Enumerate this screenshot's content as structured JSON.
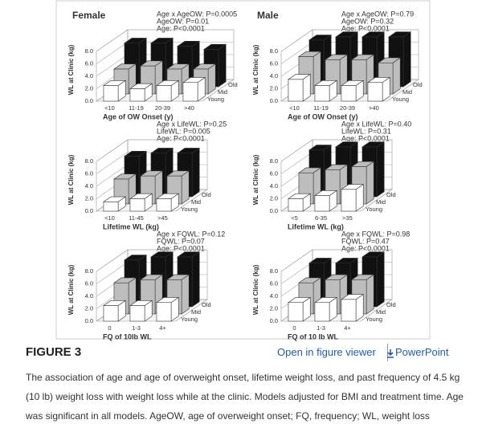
{
  "chart_data": [
    {
      "type": "bar",
      "title": "Female",
      "annotations": [
        "Age x AgeOW: P=0.0005",
        "AgeOW: P=0.01",
        "Age: P<0.0001"
      ],
      "ylabel": "WL at Clinic (kg)",
      "xlabel": "Age of OW Onset (y)",
      "categories": [
        "<10",
        "11-19",
        "20-39",
        ">40"
      ],
      "series": [
        {
          "name": "Young",
          "color": "#ffffff",
          "values": [
            2.5,
            2.0,
            2.5,
            3.0
          ]
        },
        {
          "name": "Mid",
          "color": "#bdbdbd",
          "values": [
            4.0,
            4.5,
            4.0,
            4.0
          ]
        },
        {
          "name": "Old",
          "color": "#111111",
          "values": [
            7.0,
            7.0,
            6.5,
            6.0
          ]
        }
      ],
      "ylim": [
        0,
        8
      ],
      "yticks": [
        {
          "value": 0,
          "label": "0.0"
        },
        {
          "value": 2,
          "label": "2.0"
        },
        {
          "value": 4,
          "label": "4.0"
        },
        {
          "value": 6,
          "label": "6.0"
        },
        {
          "value": 8,
          "label": "8.0"
        }
      ],
      "grid": true
    },
    {
      "type": "bar",
      "title": "Male",
      "annotations": [
        "Age x AgeOW: P=0.79",
        "AgeOW: P=0.32",
        "Age: P<0.0001"
      ],
      "ylabel": "WL at Clinic (kg)",
      "xlabel": "Age of OW Onset (y)",
      "categories": [
        "<10",
        "11-19",
        "20-39",
        ">40"
      ],
      "series": [
        {
          "name": "Young",
          "color": "#ffffff",
          "values": [
            3.5,
            2.5,
            2.5,
            3.0
          ]
        },
        {
          "name": "Mid",
          "color": "#bdbdbd",
          "values": [
            6.0,
            5.5,
            5.5,
            5.0
          ]
        },
        {
          "name": "Old",
          "color": "#111111",
          "values": [
            7.5,
            8.0,
            8.0,
            8.0
          ]
        }
      ],
      "ylim": [
        0,
        8
      ],
      "yticks": [
        {
          "value": 0,
          "label": "0.0"
        },
        {
          "value": 2,
          "label": "2.0"
        },
        {
          "value": 4,
          "label": "4.0"
        },
        {
          "value": 6,
          "label": "6.0"
        },
        {
          "value": 8,
          "label": "8.0"
        }
      ],
      "grid": true
    },
    {
      "type": "bar",
      "annotations": [
        "Age x LifeWL: P=0.25",
        "LifeWL: P=0.005",
        "Age: P<0.0001"
      ],
      "ylabel": "WL at Clinic (kg)",
      "xlabel": "Lifetime WL (kg)",
      "categories": [
        "<10",
        "11-45",
        ">45"
      ],
      "series": [
        {
          "name": "Young",
          "color": "#ffffff",
          "values": [
            1.5,
            2.0,
            2.0
          ]
        },
        {
          "name": "Mid",
          "color": "#bdbdbd",
          "values": [
            4.0,
            4.5,
            4.5
          ]
        },
        {
          "name": "Old",
          "color": "#111111",
          "values": [
            6.5,
            7.0,
            7.0
          ]
        }
      ],
      "ylim": [
        0,
        8
      ],
      "yticks": [
        {
          "value": 0,
          "label": "0.0"
        },
        {
          "value": 2,
          "label": "2.0"
        },
        {
          "value": 4,
          "label": "4.0"
        },
        {
          "value": 6,
          "label": "6.0"
        },
        {
          "value": 8,
          "label": "8.0"
        }
      ],
      "grid": true
    },
    {
      "type": "bar",
      "annotations": [
        "Age x LifeWL: P=0.40",
        "LifeWL: P=0.31",
        "Age: P<0.0001"
      ],
      "ylabel": "WL at Clinic (kg)",
      "xlabel": "Lifetime WL (kg)",
      "categories": [
        "<5",
        "6-35",
        ">35"
      ],
      "series": [
        {
          "name": "Young",
          "color": "#ffffff",
          "values": [
            2.0,
            2.5,
            3.5
          ]
        },
        {
          "name": "Mid",
          "color": "#bdbdbd",
          "values": [
            5.0,
            5.5,
            6.0
          ]
        },
        {
          "name": "Old",
          "color": "#111111",
          "values": [
            7.5,
            8.0,
            8.0
          ]
        }
      ],
      "ylim": [
        0,
        8
      ],
      "yticks": [
        {
          "value": 0,
          "label": "0.0"
        },
        {
          "value": 2,
          "label": "2.0"
        },
        {
          "value": 4,
          "label": "4.0"
        },
        {
          "value": 6,
          "label": "6.0"
        },
        {
          "value": 8,
          "label": "8.0"
        }
      ],
      "grid": true
    },
    {
      "type": "bar",
      "annotations": [
        "Age x FQWL: P=0.12",
        "FQWL: P=0.07",
        "Age: P<0.0001"
      ],
      "ylabel": "WL at Clinic (kg)",
      "xlabel": "FQ of 10lb WL",
      "categories": [
        "0",
        "1-3",
        "4+"
      ],
      "series": [
        {
          "name": "Young",
          "color": "#ffffff",
          "values": [
            2.5,
            2.5,
            3.0
          ]
        },
        {
          "name": "Mid",
          "color": "#bdbdbd",
          "values": [
            5.0,
            5.5,
            5.5
          ]
        },
        {
          "name": "Old",
          "color": "#111111",
          "values": [
            7.5,
            8.0,
            8.0
          ]
        }
      ],
      "ylim": [
        0,
        8
      ],
      "yticks": [
        {
          "value": 0,
          "label": "0.0"
        },
        {
          "value": 2,
          "label": "2.0"
        },
        {
          "value": 4,
          "label": "4.0"
        },
        {
          "value": 6,
          "label": "6.0"
        },
        {
          "value": 8,
          "label": "8.0"
        }
      ],
      "grid": true
    },
    {
      "type": "bar",
      "annotations": [
        "Age x FQWL: P=0.98",
        "FQWL: P=0.47",
        "Age: P<0.0001"
      ],
      "ylabel": "WL at Clinic (kg)",
      "xlabel": "FQ of 10 lb WL",
      "categories": [
        "0",
        "1-3",
        "4+"
      ],
      "series": [
        {
          "name": "Young",
          "color": "#ffffff",
          "values": [
            3.0,
            3.0,
            3.5
          ]
        },
        {
          "name": "Mid",
          "color": "#bdbdbd",
          "values": [
            5.0,
            5.5,
            5.5
          ]
        },
        {
          "name": "Old",
          "color": "#111111",
          "values": [
            7.0,
            7.0,
            8.0
          ]
        }
      ],
      "ylim": [
        0,
        8
      ],
      "yticks": [
        {
          "value": 0,
          "label": "0.0"
        },
        {
          "value": 2,
          "label": "2.0"
        },
        {
          "value": 4,
          "label": "4.0"
        },
        {
          "value": 6,
          "label": "6.0"
        },
        {
          "value": 8,
          "label": "8.0"
        }
      ],
      "grid": true
    }
  ],
  "figure_label": "FIGURE 3",
  "links": {
    "viewer": "Open in figure viewer",
    "powerpoint": "PowerPoint"
  },
  "caption": "The association of age and age of overweight onset, lifetime weight loss, and past frequency of 4.5 kg (10 lb) weight loss with weight loss while at the clinic. Models adjusted for BMI and treatment time. Age was significant in all models. AgeOW, age of overweight onset; FQ, frequency; WL, weight loss"
}
